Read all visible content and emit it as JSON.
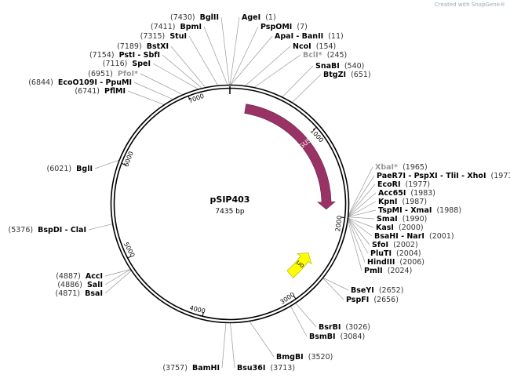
{
  "watermark": "Created with SnapGene®",
  "plasmid": {
    "name": "pSIP403",
    "length_label": "7435 bp",
    "length": 7435
  },
  "ticks": [
    "1000",
    "2000",
    "3000",
    "4000",
    "5000",
    "6000",
    "7000"
  ],
  "features": [
    {
      "name": "GUS",
      "start": 190,
      "end": 1925,
      "direction": "forward",
      "color": "#993366"
    },
    {
      "name": "ori",
      "start": 2520,
      "end": 2880,
      "direction": "reverse",
      "color": "#ffff00"
    }
  ],
  "sites": [
    {
      "name": "BglII",
      "pos": 7430
    },
    {
      "name": "BpmI",
      "pos": 7411
    },
    {
      "name": "StuI",
      "pos": 7315
    },
    {
      "name": "BstXI",
      "pos": 7189
    },
    {
      "name": "PstI - SbfI",
      "pos": 7154
    },
    {
      "name": "SpeI",
      "pos": 7116
    },
    {
      "name": "PfoI*",
      "pos": 6951,
      "gray": true
    },
    {
      "name": "EcoO109I - PpuMI",
      "pos": 6844
    },
    {
      "name": "PflMI",
      "pos": 6741
    },
    {
      "name": "BglI",
      "pos": 6021
    },
    {
      "name": "BspDI - ClaI",
      "pos": 5376
    },
    {
      "name": "AccI",
      "pos": 4887
    },
    {
      "name": "SalI",
      "pos": 4886
    },
    {
      "name": "BsaI",
      "pos": 4871
    },
    {
      "name": "BamHI",
      "pos": 3757
    },
    {
      "name": "AgeI",
      "pos": 1
    },
    {
      "name": "PspOMI",
      "pos": 7
    },
    {
      "name": "ApaI - BanII",
      "pos": 11
    },
    {
      "name": "NcoI",
      "pos": 154
    },
    {
      "name": "BclI*",
      "pos": 245,
      "gray": true
    },
    {
      "name": "SnaBI",
      "pos": 540
    },
    {
      "name": "BtgZI",
      "pos": 651
    },
    {
      "name": "XbaI*",
      "pos": 1965,
      "gray": true
    },
    {
      "name": "PaeR7I - PspXI - TliI - XhoI",
      "pos": 1971
    },
    {
      "name": "EcoRI",
      "pos": 1977
    },
    {
      "name": "Acc65I",
      "pos": 1983
    },
    {
      "name": "KpnI",
      "pos": 1987
    },
    {
      "name": "TspMI - XmaI",
      "pos": 1988
    },
    {
      "name": "SmaI",
      "pos": 1990
    },
    {
      "name": "KasI",
      "pos": 2000
    },
    {
      "name": "BsaHI - NarI",
      "pos": 2001
    },
    {
      "name": "SfoI",
      "pos": 2002
    },
    {
      "name": "PluTI",
      "pos": 2004
    },
    {
      "name": "HindIII",
      "pos": 2006
    },
    {
      "name": "PmlI",
      "pos": 2024
    },
    {
      "name": "BseYI",
      "pos": 2652
    },
    {
      "name": "PspFI",
      "pos": 2656
    },
    {
      "name": "BsrBI",
      "pos": 3026
    },
    {
      "name": "BsmBI",
      "pos": 3084
    },
    {
      "name": "BmgBI",
      "pos": 3520
    },
    {
      "name": "Bsu36I",
      "pos": 3713
    }
  ]
}
